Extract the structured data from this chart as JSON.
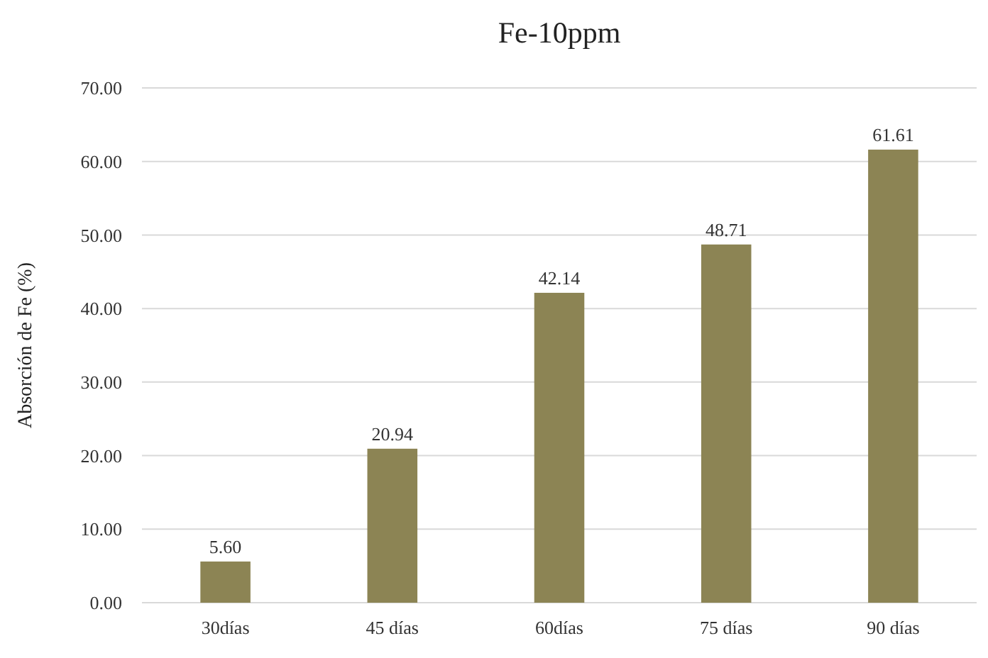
{
  "chart_data": {
    "type": "bar",
    "title": "Fe-10ppm",
    "ylabel": "Absorción de Fe (%)",
    "categories": [
      "30días",
      "45 días",
      "60días",
      "75 días",
      "90 días"
    ],
    "values": [
      5.6,
      20.94,
      42.14,
      48.71,
      61.61
    ],
    "value_labels": [
      "5.60",
      "20.94",
      "42.14",
      "48.71",
      "61.61"
    ],
    "color": "#8c8454",
    "ylim": [
      0,
      70
    ],
    "yticks": [
      {
        "value": 0,
        "label": "0.00"
      },
      {
        "value": 10,
        "label": "10.00"
      },
      {
        "value": 20,
        "label": "20.00"
      },
      {
        "value": 30,
        "label": "30.00"
      },
      {
        "value": 40,
        "label": "40.00"
      },
      {
        "value": 50,
        "label": "50.00"
      },
      {
        "value": 60,
        "label": "60.00"
      },
      {
        "value": 70,
        "label": "70.00"
      }
    ],
    "grid": "y"
  }
}
